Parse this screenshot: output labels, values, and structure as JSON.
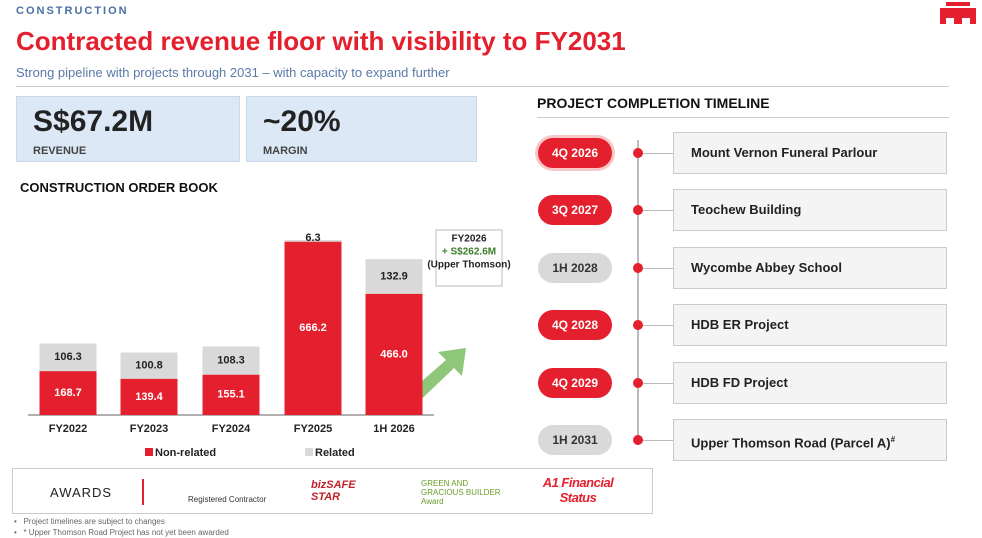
{
  "header": {
    "section": "CONSTRUCTION",
    "title": "Contracted revenue floor with visibility to FY2031",
    "subtitle": "Strong pipeline with projects through 2031 – with capacity to expand further"
  },
  "kpis": [
    {
      "value": "S$67.2M",
      "label": "REVENUE"
    },
    {
      "value": "~20%",
      "label": "MARGIN"
    }
  ],
  "chart_data": {
    "type": "stacked_bar",
    "title": "CONSTRUCTION ORDER BOOK",
    "categories": [
      "FY2022",
      "FY2023",
      "FY2024",
      "FY2025",
      "1H 2026"
    ],
    "series": [
      {
        "name": "Non-related",
        "color": "#e5202e",
        "values": [
          168.7,
          139.4,
          155.1,
          666.2,
          466.0
        ],
        "value_labels": [
          "168.7",
          "139.4",
          "155.1",
          "666.2",
          "466.0"
        ]
      },
      {
        "name": "Related",
        "color": "#d9d9d9",
        "values": [
          106.3,
          100.8,
          108.3,
          6.3,
          132.9
        ]
      }
    ],
    "annotation": [
      "FY2026",
      "+ S$262.6M",
      "(Upper Thomson)"
    ]
  },
  "timeline": {
    "title": "PROJECT COMPLETION TIMELINE",
    "items": [
      {
        "date": "4Q 2026",
        "project": "Mount Vernon Funeral Parlour",
        "color": "#e5202e"
      },
      {
        "date": "3Q 2027",
        "project": "Teochew Building",
        "color": "#e5202e"
      },
      {
        "date": "1H 2028",
        "project": "Wycombe Abbey School",
        "color": "#d9d9d9"
      },
      {
        "date": "4Q 2028",
        "project": "HDB ER Project",
        "color": "#e5202e"
      },
      {
        "date": "4Q 2029",
        "project": "HDB FD Project",
        "color": "#e5202e"
      },
      {
        "date": "1H 2031",
        "project": "Upper Thomson Road (Parcel A)",
        "mark": "#",
        "color": "#d9d9d9"
      }
    ]
  },
  "awards": {
    "label": "AWARDS",
    "items": [
      "Registered Contractor",
      "bizSAFE STAR",
      "GREEN AND GRACIOUS BUILDER Award",
      "A1 Financial Status"
    ]
  },
  "footnotes": [
    "Project timelines are subject to changes",
    "* Upper Thomson Road Project has not yet been awarded"
  ]
}
